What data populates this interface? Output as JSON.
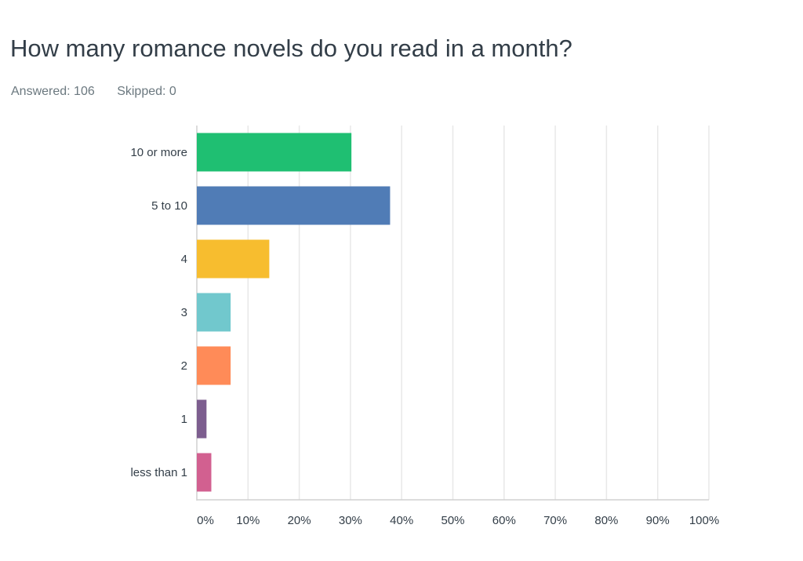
{
  "title": "How many romance novels do you read in a month?",
  "answered": "Answered: 106",
  "skipped": "Skipped: 0",
  "chart_data": {
    "type": "bar",
    "orientation": "horizontal",
    "categories": [
      "10 or more",
      "5 to 10",
      "4",
      "3",
      "2",
      "1",
      "less than 1"
    ],
    "values": [
      30.19,
      37.74,
      14.15,
      6.6,
      6.6,
      1.89,
      2.83
    ],
    "colors": [
      "#1fbf72",
      "#507cb6",
      "#f7bd2f",
      "#71c8cd",
      "#ff8b58",
      "#7d5e8f",
      "#d26090"
    ],
    "xlim": [
      0,
      100
    ],
    "xticks": [
      "0%",
      "10%",
      "20%",
      "30%",
      "40%",
      "50%",
      "60%",
      "70%",
      "80%",
      "90%",
      "100%"
    ],
    "grid": true
  }
}
